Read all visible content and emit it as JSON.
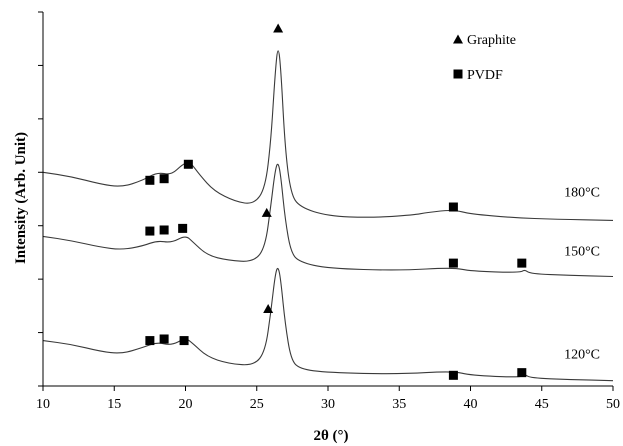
{
  "chart_data": {
    "type": "line",
    "xlabel": "2θ (°)",
    "ylabel": "Intensity (Arb. Unit)",
    "xlim": [
      10,
      50
    ],
    "ylim": [
      0,
      7
    ],
    "x_ticks": [
      "10",
      "15",
      "20",
      "25",
      "30",
      "35",
      "40",
      "45",
      "50"
    ],
    "y_tick_labels_shown": false,
    "grid": false,
    "legend": {
      "placement": "top-right",
      "entries": [
        {
          "marker": "triangle",
          "label": "Graphite"
        },
        {
          "marker": "square",
          "label": "PVDF"
        }
      ]
    },
    "series": [
      {
        "name": "180°C",
        "label": "180°C",
        "points": [
          [
            10,
            4.0
          ],
          [
            12,
            3.92
          ],
          [
            14,
            3.78
          ],
          [
            15.5,
            3.72
          ],
          [
            17,
            3.85
          ],
          [
            18,
            4.0
          ],
          [
            19,
            3.95
          ],
          [
            19.8,
            4.15
          ],
          [
            20.3,
            4.2
          ],
          [
            21,
            3.95
          ],
          [
            22,
            3.65
          ],
          [
            23.5,
            3.45
          ],
          [
            24.8,
            3.4
          ],
          [
            25.6,
            3.7
          ],
          [
            26.0,
            4.6
          ],
          [
            26.3,
            5.9
          ],
          [
            26.5,
            6.4
          ],
          [
            26.7,
            5.9
          ],
          [
            27.0,
            4.4
          ],
          [
            27.4,
            3.6
          ],
          [
            28,
            3.35
          ],
          [
            30,
            3.18
          ],
          [
            33,
            3.15
          ],
          [
            36,
            3.2
          ],
          [
            37,
            3.25
          ],
          [
            38.8,
            3.3
          ],
          [
            40,
            3.22
          ],
          [
            43,
            3.15
          ],
          [
            46,
            3.12
          ],
          [
            50,
            3.1
          ]
        ]
      },
      {
        "name": "150°C",
        "label": "150°C",
        "points": [
          [
            10,
            2.8
          ],
          [
            12,
            2.72
          ],
          [
            14,
            2.6
          ],
          [
            15.5,
            2.55
          ],
          [
            17,
            2.62
          ],
          [
            18,
            2.72
          ],
          [
            19,
            2.68
          ],
          [
            20,
            2.82
          ],
          [
            20.5,
            2.7
          ],
          [
            21.5,
            2.45
          ],
          [
            23,
            2.35
          ],
          [
            24.8,
            2.32
          ],
          [
            25.6,
            2.6
          ],
          [
            26.0,
            3.4
          ],
          [
            26.3,
            4.05
          ],
          [
            26.5,
            4.2
          ],
          [
            26.7,
            3.9
          ],
          [
            27.0,
            3.1
          ],
          [
            27.4,
            2.5
          ],
          [
            28,
            2.32
          ],
          [
            30,
            2.2
          ],
          [
            35,
            2.16
          ],
          [
            38.8,
            2.22
          ],
          [
            40,
            2.15
          ],
          [
            43.5,
            2.12
          ],
          [
            43.8,
            2.18
          ],
          [
            44.2,
            2.1
          ],
          [
            47,
            2.07
          ],
          [
            50,
            2.05
          ]
        ]
      },
      {
        "name": "120°C",
        "label": "120°C",
        "points": [
          [
            10,
            0.85
          ],
          [
            12,
            0.78
          ],
          [
            14,
            0.65
          ],
          [
            15.5,
            0.6
          ],
          [
            17,
            0.72
          ],
          [
            18,
            0.82
          ],
          [
            19,
            0.76
          ],
          [
            20,
            0.9
          ],
          [
            20.5,
            0.8
          ],
          [
            21.5,
            0.55
          ],
          [
            23,
            0.42
          ],
          [
            24.8,
            0.38
          ],
          [
            25.6,
            0.65
          ],
          [
            26.0,
            1.4
          ],
          [
            26.3,
            2.1
          ],
          [
            26.5,
            2.25
          ],
          [
            26.7,
            1.95
          ],
          [
            27.0,
            1.15
          ],
          [
            27.4,
            0.5
          ],
          [
            28,
            0.32
          ],
          [
            30,
            0.25
          ],
          [
            35,
            0.22
          ],
          [
            38.8,
            0.28
          ],
          [
            40,
            0.2
          ],
          [
            43.5,
            0.16
          ],
          [
            43.8,
            0.22
          ],
          [
            44.2,
            0.15
          ],
          [
            47,
            0.12
          ],
          [
            50,
            0.1
          ]
        ]
      }
    ],
    "markers": {
      "graphite": [
        [
          26.5,
          6.7
        ],
        [
          25.7,
          3.25
        ],
        [
          25.8,
          1.45
        ]
      ],
      "pvdf": [
        [
          17.5,
          3.85
        ],
        [
          18.5,
          3.88
        ],
        [
          20.2,
          4.15
        ],
        [
          38.8,
          3.35
        ],
        [
          17.5,
          2.9
        ],
        [
          18.5,
          2.92
        ],
        [
          19.8,
          2.95
        ],
        [
          38.8,
          2.3
        ],
        [
          43.6,
          2.3
        ],
        [
          17.5,
          0.85
        ],
        [
          18.5,
          0.88
        ],
        [
          19.9,
          0.85
        ],
        [
          38.8,
          0.2
        ],
        [
          43.6,
          0.25
        ]
      ]
    }
  }
}
